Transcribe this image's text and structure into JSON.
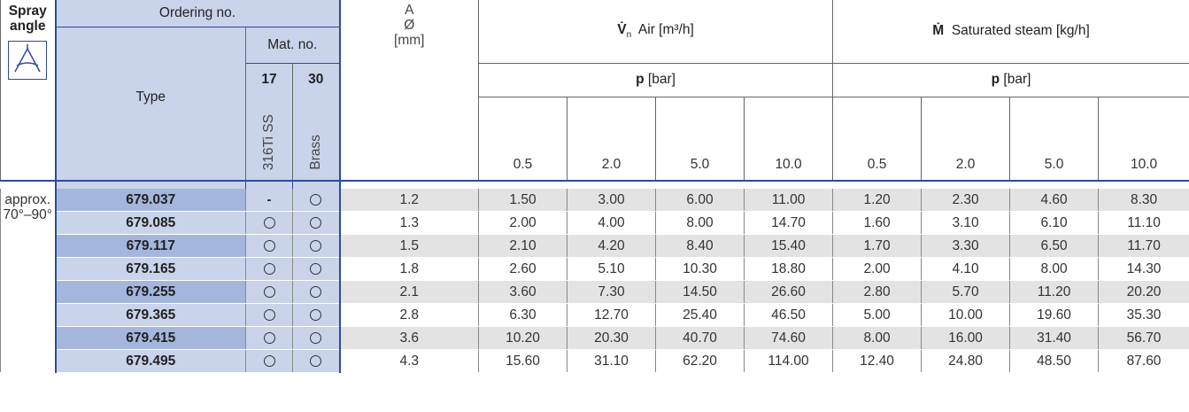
{
  "header": {
    "spray_angle_line1": "Spray",
    "spray_angle_line2": "angle",
    "ordering_no": "Ordering no.",
    "type": "Type",
    "mat_no": "Mat. no.",
    "mat_17": "17",
    "mat_30": "30",
    "mat_17_label": "316Ti SS",
    "mat_30_label": "Brass",
    "a_line1": "A",
    "a_line2": "Ø",
    "a_line3": "[mm]",
    "air_symbol": "V̇",
    "air_sub": "n",
    "air_label": "Air [m³/h]",
    "steam_symbol": "Ṁ",
    "steam_label": "Saturated steam [kg/h]",
    "p_symbol": "p",
    "p_unit": "[bar]",
    "pressures": [
      "0.5",
      "2.0",
      "5.0",
      "10.0"
    ],
    "icon": "spray-angle-icon"
  },
  "angle": {
    "line1": "approx.",
    "line2": "70°–90°"
  },
  "rows": [
    {
      "type": "679.037",
      "m17": "-",
      "m30": "circle",
      "a": "1.2",
      "air": [
        "1.50",
        "3.00",
        "6.00",
        "11.00"
      ],
      "steam": [
        "1.20",
        "2.30",
        "4.60",
        "8.30"
      ]
    },
    {
      "type": "679.085",
      "m17": "circle",
      "m30": "circle",
      "a": "1.3",
      "air": [
        "2.00",
        "4.00",
        "8.00",
        "14.70"
      ],
      "steam": [
        "1.60",
        "3.10",
        "6.10",
        "11.10"
      ]
    },
    {
      "type": "679.117",
      "m17": "circle",
      "m30": "circle",
      "a": "1.5",
      "air": [
        "2.10",
        "4.20",
        "8.40",
        "15.40"
      ],
      "steam": [
        "1.70",
        "3.30",
        "6.50",
        "11.70"
      ]
    },
    {
      "type": "679.165",
      "m17": "circle",
      "m30": "circle",
      "a": "1.8",
      "air": [
        "2.60",
        "5.10",
        "10.30",
        "18.80"
      ],
      "steam": [
        "2.00",
        "4.10",
        "8.00",
        "14.30"
      ]
    },
    {
      "type": "679.255",
      "m17": "circle",
      "m30": "circle",
      "a": "2.1",
      "air": [
        "3.60",
        "7.30",
        "14.50",
        "26.60"
      ],
      "steam": [
        "2.80",
        "5.70",
        "11.20",
        "20.20"
      ]
    },
    {
      "type": "679.365",
      "m17": "circle",
      "m30": "circle",
      "a": "2.8",
      "air": [
        "6.30",
        "12.70",
        "25.40",
        "46.50"
      ],
      "steam": [
        "5.00",
        "10.00",
        "19.60",
        "35.30"
      ]
    },
    {
      "type": "679.415",
      "m17": "circle",
      "m30": "circle",
      "a": "3.6",
      "air": [
        "10.20",
        "20.30",
        "40.70",
        "74.60"
      ],
      "steam": [
        "8.00",
        "16.00",
        "31.40",
        "56.70"
      ]
    },
    {
      "type": "679.495",
      "m17": "circle",
      "m30": "circle",
      "a": "4.3",
      "air": [
        "15.60",
        "31.10",
        "62.20",
        "114.00"
      ],
      "steam": [
        "12.40",
        "24.80",
        "48.50",
        "87.60"
      ]
    }
  ]
}
